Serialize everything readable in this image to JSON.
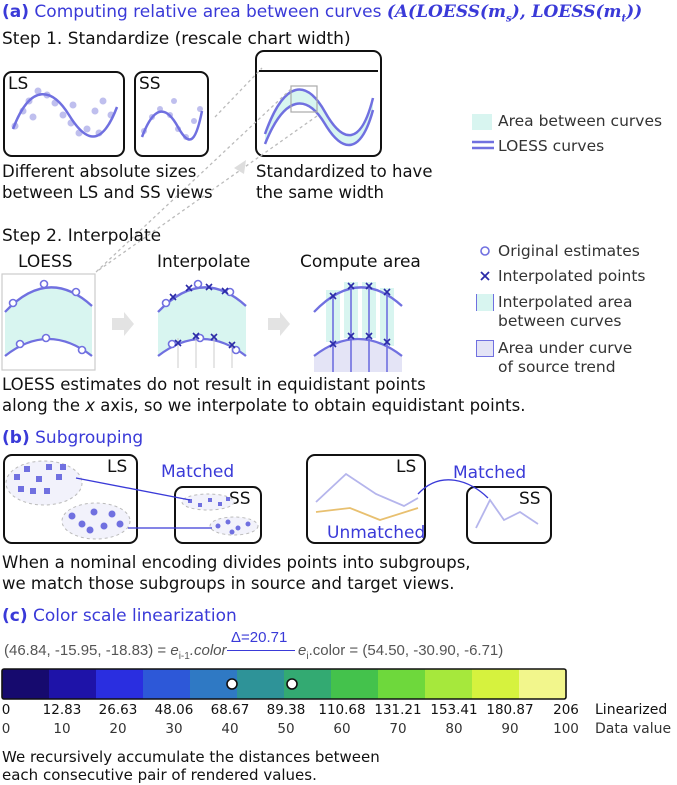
{
  "section_a": {
    "label": "(a)",
    "title": "Computing relative area between curves",
    "formula": "(A(LOESS(m",
    "formula_sub1": "s",
    "formula_mid": "), LOESS(m",
    "formula_sub2": "t",
    "formula_end": "))",
    "step1": "Step 1. Standardize (rescale chart width)",
    "ls_label": "LS",
    "ss_label": "SS",
    "caption_left_1": "Different absolute sizes",
    "caption_left_2": "between LS and SS views",
    "caption_right_1": "Standardized to have",
    "caption_right_2": "the same width",
    "legend_area": "Area between curves",
    "legend_loess": "LOESS curves",
    "step2": "Step 2. Interpolate",
    "panel_loess": "LOESS",
    "panel_interpolate": "Interpolate",
    "panel_compute": "Compute area",
    "legend_original": "Original estimates",
    "legend_interpolated": "Interpolated points",
    "legend_interp_area_1": "Interpolated area",
    "legend_interp_area_2": "between curves",
    "legend_under_1": "Area under curve",
    "legend_under_2": "of source trend",
    "caption2_1": "LOESS estimates do not result in equidistant points",
    "caption2_2a": "along the ",
    "caption2_2x": "x",
    "caption2_2b": " axis, so we interpolate to obtain equidistant points."
  },
  "section_b": {
    "label": "(b)",
    "title": "Subgrouping",
    "ls_label": "LS",
    "ss_label": "SS",
    "matched": "Matched",
    "unmatched": "Unmatched",
    "caption_1": "When a nominal encoding divides points into subgroups,",
    "caption_2": "we match those subgroups in source and target views."
  },
  "section_c": {
    "label": "(c)",
    "title": "Color scale linearization",
    "left_value": "(46.84, -15.95, -18.83) = ",
    "left_e": "e",
    "left_sub": "i-1",
    "left_color": ".color",
    "delta": "Δ=20.71",
    "right_e": "e",
    "right_sub": "i",
    "right_color": ".color = (54.50, -30.90, -6.71)",
    "linearized_ticks": [
      "0",
      "12.83",
      "26.63",
      "48.06",
      "68.67",
      "89.38",
      "110.68",
      "131.21",
      "153.41",
      "180.87",
      "206"
    ],
    "data_ticks": [
      "0",
      "10",
      "20",
      "30",
      "40",
      "50",
      "60",
      "70",
      "80",
      "90",
      "100"
    ],
    "linearized_label": "Linearized",
    "data_label": "Data value",
    "colors": [
      "#160a6e",
      "#1e13a8",
      "#2a2ee0",
      "#2d58d8",
      "#2f79c4",
      "#2e9398",
      "#33aa72",
      "#44c24c",
      "#6ed83c",
      "#a6e83c",
      "#d6f23e",
      "#f2f68c"
    ],
    "caption_1": "We recursively accumulate the distances between",
    "caption_2": "each consecutive pair of rendered values."
  },
  "colors": {
    "accent": "#3a3ad8",
    "curve": "#7070e0",
    "area": "#d8f5f0"
  }
}
